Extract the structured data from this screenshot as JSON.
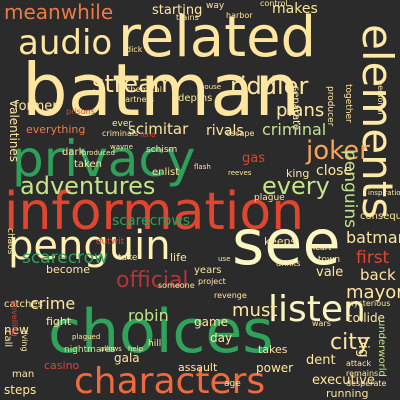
{
  "words": [
    {
      "text": "batman",
      "color": "#fee6a0"
    },
    {
      "text": "privacy",
      "color": "#2ea05a"
    },
    {
      "text": "information",
      "color": "#e0452f"
    },
    {
      "text": "choices",
      "color": "#2fa35a"
    },
    {
      "text": "related",
      "color": "#fee6a0"
    },
    {
      "text": "see",
      "color": "#fbf7c4"
    },
    {
      "text": "elements",
      "color": "#fee9a6"
    },
    {
      "text": "characters",
      "color": "#ef6a3d"
    },
    {
      "text": "penguin",
      "color": "#fdf2b4"
    },
    {
      "text": "listen",
      "color": "#fbf5c0"
    },
    {
      "text": "audio",
      "color": "#fee6a0"
    },
    {
      "text": "stream",
      "color": "#fee6a0"
    },
    {
      "text": "adventures",
      "color": "#c3e38d"
    },
    {
      "text": "riddler",
      "color": "#fee6a0"
    },
    {
      "text": "every",
      "color": "#c3e38d"
    },
    {
      "text": "joker",
      "color": "#f8a35a"
    },
    {
      "text": "meanwhile",
      "color": "#f07a45"
    },
    {
      "text": "plans",
      "color": "#fee6a0"
    },
    {
      "text": "official",
      "color": "#b5343a"
    },
    {
      "text": "scarecrows",
      "color": "#2ea05a"
    },
    {
      "text": "scarecrow",
      "color": "#2ea05a"
    },
    {
      "text": "penguins",
      "color": "#c3e38d"
    },
    {
      "text": "criminal",
      "color": "#c3e38d"
    },
    {
      "text": "scimitar",
      "color": "#fee6a0"
    },
    {
      "text": "city",
      "color": "#fee6a0"
    },
    {
      "text": "crime",
      "color": "#fee6a0"
    },
    {
      "text": "robin",
      "color": "#c3e38d"
    },
    {
      "text": "mayor",
      "color": "#fee6a0"
    },
    {
      "text": "starting",
      "color": "#fee6a0"
    },
    {
      "text": "makes",
      "color": "#fee6a0"
    },
    {
      "text": "former",
      "color": "#fee6a0"
    },
    {
      "text": "valentines",
      "color": "#fee6a0"
    },
    {
      "text": "everything",
      "color": "#f07a45"
    },
    {
      "text": "rivals",
      "color": "#fee6a0"
    },
    {
      "text": "gas",
      "color": "#e0452f"
    },
    {
      "text": "close",
      "color": "#fee6a0"
    },
    {
      "text": "king",
      "color": "#fee6a0"
    },
    {
      "text": "batmans",
      "color": "#fee6a0"
    },
    {
      "text": "first",
      "color": "#e0452f"
    },
    {
      "text": "back",
      "color": "#fee6a0"
    },
    {
      "text": "vale",
      "color": "#fee6a0"
    },
    {
      "text": "must",
      "color": "#fee6a0"
    },
    {
      "text": "big",
      "color": "#fee6a0"
    },
    {
      "text": "new",
      "color": "#fee6a0"
    },
    {
      "text": "fight",
      "color": "#fee6a0"
    },
    {
      "text": "collide",
      "color": "#fee6a0"
    },
    {
      "text": "gala",
      "color": "#fee6a0"
    },
    {
      "text": "executive",
      "color": "#fee6a0"
    },
    {
      "text": "running",
      "color": "#fee6a0"
    },
    {
      "text": "dent",
      "color": "#fee6a0"
    },
    {
      "text": "day",
      "color": "#fee6a0"
    },
    {
      "text": "game",
      "color": "#fee6a0"
    },
    {
      "text": "takes",
      "color": "#fee6a0"
    },
    {
      "text": "power",
      "color": "#fee6a0"
    },
    {
      "text": "assault",
      "color": "#fee6a0"
    },
    {
      "text": "casino",
      "color": "#e0452f"
    },
    {
      "text": "steps",
      "color": "#fee6a0"
    },
    {
      "text": "underworld",
      "color": "#c3e38d"
    },
    {
      "text": "become",
      "color": "#fee6a0"
    },
    {
      "text": "life",
      "color": "#fee6a0"
    },
    {
      "text": "years",
      "color": "#fee6a0"
    },
    {
      "text": "dark",
      "color": "#fee6a0"
    },
    {
      "text": "taken",
      "color": "#fee6a0"
    },
    {
      "text": "enlist",
      "color": "#fee6a0"
    },
    {
      "text": "depths",
      "color": "#fee6a0"
    },
    {
      "text": "plague",
      "color": "#fee6a0"
    },
    {
      "text": "consequences",
      "color": "#fee6a0"
    },
    {
      "text": "town",
      "color": "#fee6a0"
    },
    {
      "text": "keeps",
      "color": "#fee6a0"
    },
    {
      "text": "outwit",
      "color": "#e0452f"
    },
    {
      "text": "ever",
      "color": "#fee6a0"
    },
    {
      "text": "call",
      "color": "#fee6a0"
    },
    {
      "text": "nightmares",
      "color": "#c3e38d"
    },
    {
      "text": "chaos",
      "color": "#fee6a0"
    },
    {
      "text": "catches",
      "color": "#fee6a0"
    },
    {
      "text": "man",
      "color": "#fee6a0"
    },
    {
      "text": "hill",
      "color": "#fee6a0"
    },
    {
      "text": "age",
      "color": "#fee6a0"
    },
    {
      "text": "way",
      "color": "#fee6a0"
    },
    {
      "text": "together",
      "color": "#fee6a0"
    },
    {
      "text": "producer",
      "color": "#fee6a0"
    },
    {
      "text": "separate",
      "color": "#fee6a0"
    },
    {
      "text": "unveiling",
      "color": "#e0452f"
    },
    {
      "text": "mysterious",
      "color": "#fee6a0"
    },
    {
      "text": "take",
      "color": "#fee6a0"
    },
    {
      "text": "drinks",
      "color": "#fee6a0"
    },
    {
      "text": "schism",
      "color": "#fee6a0"
    },
    {
      "text": "wars",
      "color": "#fee6a0"
    },
    {
      "text": "attack",
      "color": "#fee6a0"
    },
    {
      "text": "remains",
      "color": "#fee6a0"
    },
    {
      "text": "desperate",
      "color": "#fee6a0"
    },
    {
      "text": "personal",
      "color": "#fee6a0"
    },
    {
      "text": "escape",
      "color": "#fee6a0"
    },
    {
      "text": "prisons",
      "color": "#e0452f"
    },
    {
      "text": "partners",
      "color": "#fee6a0"
    },
    {
      "text": "harbor",
      "color": "#fee6a0"
    },
    {
      "text": "control",
      "color": "#fee6a0"
    },
    {
      "text": "trains",
      "color": "#fee6a0"
    },
    {
      "text": "dick",
      "color": "#fee6a0"
    },
    {
      "text": "heart",
      "color": "#fee6a0"
    },
    {
      "text": "criminals",
      "color": "#fee6a0"
    },
    {
      "text": "project",
      "color": "#fee6a0"
    },
    {
      "text": "revenge",
      "color": "#fee6a0"
    },
    {
      "text": "someone",
      "color": "#fee6a0"
    },
    {
      "text": "living",
      "color": "#fee6a0"
    },
    {
      "text": "chemical",
      "color": "#fee6a0"
    },
    {
      "text": "fend",
      "color": "#e0452f"
    },
    {
      "text": "reeves",
      "color": "#fee6a0"
    },
    {
      "text": "inspiration",
      "color": "#fee6a0"
    },
    {
      "text": "produced",
      "color": "#fee6a0"
    },
    {
      "text": "flash",
      "color": "#fee6a0"
    },
    {
      "text": "wayne",
      "color": "#fee6a0"
    },
    {
      "text": "house",
      "color": "#fee6a0"
    },
    {
      "text": "plagued",
      "color": "#fee6a0"
    },
    {
      "text": "allows",
      "color": "#fee6a0"
    },
    {
      "text": "help",
      "color": "#fee6a0"
    },
    {
      "text": "use",
      "color": "#fee6a0"
    },
    {
      "text": "hand",
      "color": "#fee6a0"
    }
  ]
}
